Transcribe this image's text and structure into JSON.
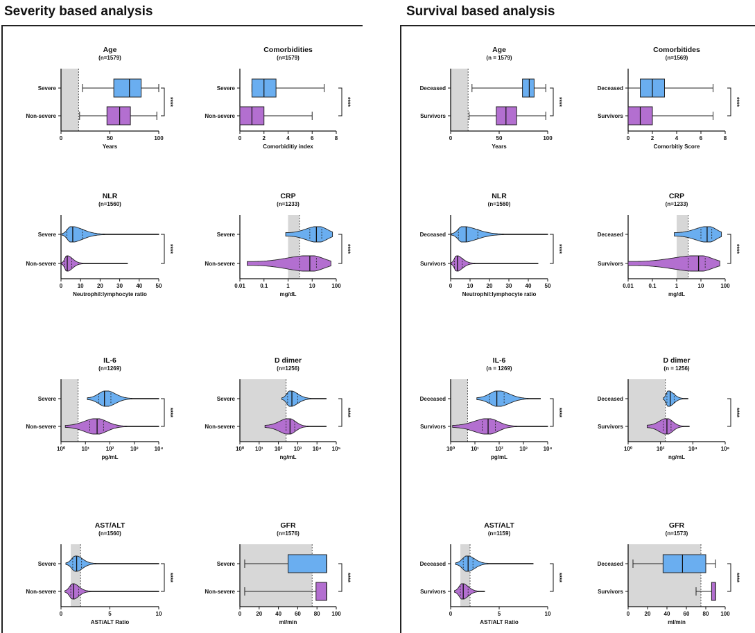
{
  "sections": [
    {
      "title": "Severity based analysis",
      "groups": [
        "Severe",
        "Non-severe"
      ]
    },
    {
      "title": "Survival based analysis",
      "groups": [
        "Deceased",
        "Survivors"
      ]
    }
  ],
  "colors": {
    "upper_group": "#6aaef0",
    "lower_group": "#b36fd0",
    "reference_band": "#d7d7d7"
  },
  "chart_data": [
    {
      "type": "box",
      "section": 0,
      "title": "Age",
      "n_label": "(n=1579)",
      "xlabel": "Years",
      "scale": "linear",
      "xlim": [
        0,
        100
      ],
      "ticks": [
        0,
        50,
        100
      ],
      "ref_range": [
        0,
        18
      ],
      "significance": "****",
      "series": [
        {
          "name": "Severe",
          "min": 22,
          "q1": 54,
          "median": 70,
          "q3": 82,
          "max": 100
        },
        {
          "name": "Non-severe",
          "min": 19,
          "q1": 47,
          "median": 60,
          "q3": 71,
          "max": 98
        }
      ]
    },
    {
      "type": "box",
      "section": 0,
      "title": "Comorbidities",
      "n_label": "(n=1579)",
      "xlabel": "Comorbiditiy index",
      "scale": "linear",
      "xlim": [
        0,
        8
      ],
      "ticks": [
        0,
        2,
        4,
        6,
        8
      ],
      "significance": "****",
      "series": [
        {
          "name": "Severe",
          "min": 1,
          "q1": 1,
          "median": 2,
          "q3": 3,
          "max": 7
        },
        {
          "name": "Non-severe",
          "min": 0,
          "q1": 0,
          "median": 1,
          "q3": 2,
          "max": 6
        }
      ]
    },
    {
      "type": "violin",
      "section": 0,
      "title": "NLR",
      "n_label": "(n=1560)",
      "xlabel": "Neutrophil:lymphocyte ratio",
      "scale": "linear",
      "xlim": [
        0,
        50
      ],
      "ticks": [
        0,
        10,
        20,
        30,
        40,
        50
      ],
      "significance": "****",
      "series": [
        {
          "name": "Severe",
          "min": 0.5,
          "q1": 3,
          "median": 6,
          "q3": 11,
          "max": 50,
          "mode": 5
        },
        {
          "name": "Non-severe",
          "min": 0.3,
          "q1": 1.8,
          "median": 3.2,
          "q3": 5.5,
          "max": 34,
          "mode": 3
        }
      ]
    },
    {
      "type": "violin",
      "section": 0,
      "title": "CRP",
      "n_label": "(n=1233)",
      "xlabel": "mg/dL",
      "scale": "log",
      "xlim": [
        0.01,
        100
      ],
      "ticks": [
        0.01,
        0.1,
        1,
        10,
        100
      ],
      "tick_labels": [
        "0.01",
        "0.1",
        "1",
        "10",
        "100"
      ],
      "ref_range": [
        1,
        3
      ],
      "significance": "****",
      "series": [
        {
          "name": "Severe",
          "min": 0.8,
          "q1": 8,
          "median": 15,
          "q3": 25,
          "max": 70,
          "mode": 18
        },
        {
          "name": "Non-severe",
          "min": 0.02,
          "q1": 3,
          "median": 8,
          "q3": 15,
          "max": 60,
          "mode": 9
        }
      ]
    },
    {
      "type": "violin",
      "section": 0,
      "title": "IL-6",
      "n_label": "(n=1269)",
      "xlabel": "pg/mL",
      "scale": "log",
      "xlim": [
        1,
        10000
      ],
      "ticks": [
        1,
        10,
        100,
        1000,
        10000
      ],
      "tick_labels": [
        "10⁰",
        "10¹",
        "10²",
        "10³",
        "10⁴"
      ],
      "ref_range": [
        1,
        5
      ],
      "significance": "****",
      "series": [
        {
          "name": "Severe",
          "min": 12,
          "q1": 35,
          "median": 60,
          "q3": 110,
          "max": 10000,
          "mode": 70
        },
        {
          "name": "Non-severe",
          "min": 1.5,
          "q1": 15,
          "median": 30,
          "q3": 55,
          "max": 10000,
          "mode": 28
        }
      ]
    },
    {
      "type": "violin",
      "section": 0,
      "title": "D dimer",
      "n_label": "(n=1256)",
      "xlabel": "ng/mL",
      "scale": "log",
      "xlim": [
        1,
        100000
      ],
      "ticks": [
        1,
        10,
        100,
        1000,
        10000,
        100000
      ],
      "tick_labels": [
        "10⁰",
        "10¹",
        "10²",
        "10³",
        "10⁴",
        "10⁵"
      ],
      "ref_range": [
        1,
        250
      ],
      "significance": "****",
      "series": [
        {
          "name": "Severe",
          "min": 150,
          "q1": 300,
          "median": 500,
          "q3": 1000,
          "max": 30000,
          "mode": 400
        },
        {
          "name": "Non-severe",
          "min": 20,
          "q1": 250,
          "median": 400,
          "q3": 700,
          "max": 30000,
          "mode": 350
        }
      ]
    },
    {
      "type": "violin",
      "section": 0,
      "title": "AST/ALT",
      "n_label": "(n=1560)",
      "xlabel": "AST/ALT Ratio",
      "scale": "linear",
      "xlim": [
        0,
        10
      ],
      "ticks": [
        0,
        5,
        10
      ],
      "ref_range": [
        1,
        2
      ],
      "significance": "****",
      "series": [
        {
          "name": "Severe",
          "min": 0.5,
          "q1": 1.2,
          "median": 1.6,
          "q3": 2.1,
          "max": 10,
          "mode": 1.5
        },
        {
          "name": "Non-severe",
          "min": 0.4,
          "q1": 1,
          "median": 1.3,
          "q3": 1.8,
          "max": 10,
          "mode": 1.2
        }
      ]
    },
    {
      "type": "box",
      "section": 0,
      "title": "GFR",
      "n_label": "(n=1576)",
      "xlabel": "ml/min",
      "scale": "linear",
      "xlim": [
        0,
        100
      ],
      "ticks": [
        0,
        20,
        40,
        60,
        80,
        100
      ],
      "ref_range": [
        0,
        75
      ],
      "significance": "****",
      "series": [
        {
          "name": "Severe",
          "min": 5,
          "q1": 50,
          "median": 90,
          "q3": 90,
          "max": 90
        },
        {
          "name": "Non-severe",
          "min": 5,
          "q1": 79,
          "median": 90,
          "q3": 90,
          "max": 90
        }
      ]
    },
    {
      "type": "box",
      "section": 1,
      "title": "Age",
      "n_label": "(n = 1579)",
      "xlabel": "Years",
      "scale": "linear",
      "xlim": [
        0,
        100
      ],
      "ticks": [
        0,
        50,
        100
      ],
      "ref_range": [
        0,
        18
      ],
      "significance": "****",
      "series": [
        {
          "name": "Deceased",
          "min": 22,
          "q1": 74,
          "median": 81,
          "q3": 86,
          "max": 98
        },
        {
          "name": "Survivors",
          "min": 19,
          "q1": 47,
          "median": 57,
          "q3": 68,
          "max": 98
        }
      ]
    },
    {
      "type": "box",
      "section": 1,
      "title": "Comorbitides",
      "n_label": "(n=1569)",
      "xlabel": "Comorbitiy Score",
      "scale": "linear",
      "xlim": [
        0,
        8
      ],
      "ticks": [
        0,
        2,
        4,
        6,
        8
      ],
      "significance": "****",
      "series": [
        {
          "name": "Deceased",
          "min": 0,
          "q1": 1,
          "median": 2,
          "q3": 3,
          "max": 7
        },
        {
          "name": "Survivors",
          "min": 0,
          "q1": 0,
          "median": 1,
          "q3": 2,
          "max": 7
        }
      ]
    },
    {
      "type": "violin",
      "section": 1,
      "title": "NLR",
      "n_label": "(n=1560)",
      "xlabel": "Neutrophil:lymphocyte ratio",
      "scale": "linear",
      "xlim": [
        0,
        50
      ],
      "ticks": [
        0,
        10,
        20,
        30,
        40,
        50
      ],
      "significance": "****",
      "series": [
        {
          "name": "Deceased",
          "min": 0.5,
          "q1": 4,
          "median": 8,
          "q3": 14,
          "max": 50,
          "mode": 6
        },
        {
          "name": "Survivors",
          "min": 0.3,
          "q1": 2,
          "median": 3.5,
          "q3": 6,
          "max": 45,
          "mode": 3
        }
      ]
    },
    {
      "type": "violin",
      "section": 1,
      "title": "CRP",
      "n_label": "(n=1233)",
      "xlabel": "mg/dL",
      "scale": "log",
      "xlim": [
        0.01,
        100
      ],
      "ticks": [
        0.01,
        0.1,
        1,
        10,
        100
      ],
      "tick_labels": [
        "0.01",
        "0.1",
        "1",
        "10",
        "100"
      ],
      "ref_range": [
        1,
        3
      ],
      "significance": "****",
      "series": [
        {
          "name": "Deceased",
          "min": 0.8,
          "q1": 10,
          "median": 18,
          "q3": 28,
          "max": 70,
          "mode": 20
        },
        {
          "name": "Survivors",
          "min": 0.01,
          "q1": 3,
          "median": 8,
          "q3": 15,
          "max": 60,
          "mode": 9
        }
      ]
    },
    {
      "type": "violin",
      "section": 1,
      "title": "IL-6",
      "n_label": "(n = 1269)",
      "xlabel": "pg/mL",
      "scale": "log",
      "xlim": [
        1,
        10000
      ],
      "ticks": [
        1,
        10,
        100,
        1000,
        10000
      ],
      "tick_labels": [
        "10⁰",
        "10¹",
        "10²",
        "10³",
        "10⁴"
      ],
      "ref_range": [
        1,
        5
      ],
      "significance": "****",
      "series": [
        {
          "name": "Deceased",
          "min": 12,
          "q1": 40,
          "median": 80,
          "q3": 160,
          "max": 5000,
          "mode": 90
        },
        {
          "name": "Survivors",
          "min": 1.2,
          "q1": 20,
          "median": 35,
          "q3": 70,
          "max": 10000,
          "mode": 35
        }
      ]
    },
    {
      "type": "violin",
      "section": 1,
      "title": "D dimer",
      "n_label": "(n = 1256)",
      "xlabel": "ng/mL",
      "scale": "log",
      "xlim": [
        1,
        1000000
      ],
      "ticks": [
        1,
        100,
        10000,
        1000000
      ],
      "tick_labels": [
        "10⁰",
        "10²",
        "10⁴",
        "10⁶"
      ],
      "ref_range": [
        1,
        200
      ],
      "significance": "****",
      "series": [
        {
          "name": "Deceased",
          "min": 150,
          "q1": 250,
          "median": 400,
          "q3": 700,
          "max": 5000,
          "mode": 300
        },
        {
          "name": "Survivors",
          "min": 15,
          "q1": 150,
          "median": 250,
          "q3": 450,
          "max": 6000,
          "mode": 250
        }
      ]
    },
    {
      "type": "violin",
      "section": 1,
      "title": "AST/ALT",
      "n_label": "(n=1159)",
      "xlabel": "AST/ALT Ratio",
      "scale": "linear",
      "xlim": [
        0,
        10
      ],
      "ticks": [
        0,
        5,
        10
      ],
      "ref_range": [
        1,
        2
      ],
      "significance": "****",
      "series": [
        {
          "name": "Deceased",
          "min": 0.5,
          "q1": 1.3,
          "median": 1.8,
          "q3": 2.3,
          "max": 8.5,
          "mode": 1.7
        },
        {
          "name": "Survivors",
          "min": 0.4,
          "q1": 1,
          "median": 1.3,
          "q3": 1.8,
          "max": 3.5,
          "mode": 1.2
        }
      ]
    },
    {
      "type": "box",
      "section": 1,
      "title": "GFR",
      "n_label": "(n=1573)",
      "xlabel": "ml/min",
      "scale": "linear",
      "xlim": [
        0,
        100
      ],
      "ticks": [
        0,
        20,
        40,
        60,
        80,
        100
      ],
      "ref_range": [
        0,
        75
      ],
      "significance": "****",
      "series": [
        {
          "name": "Deceased",
          "min": 5,
          "q1": 36,
          "median": 56,
          "q3": 80,
          "max": 90
        },
        {
          "name": "Survivors",
          "min": 70,
          "q1": 86,
          "median": 90,
          "q3": 90,
          "max": 90
        }
      ]
    }
  ]
}
